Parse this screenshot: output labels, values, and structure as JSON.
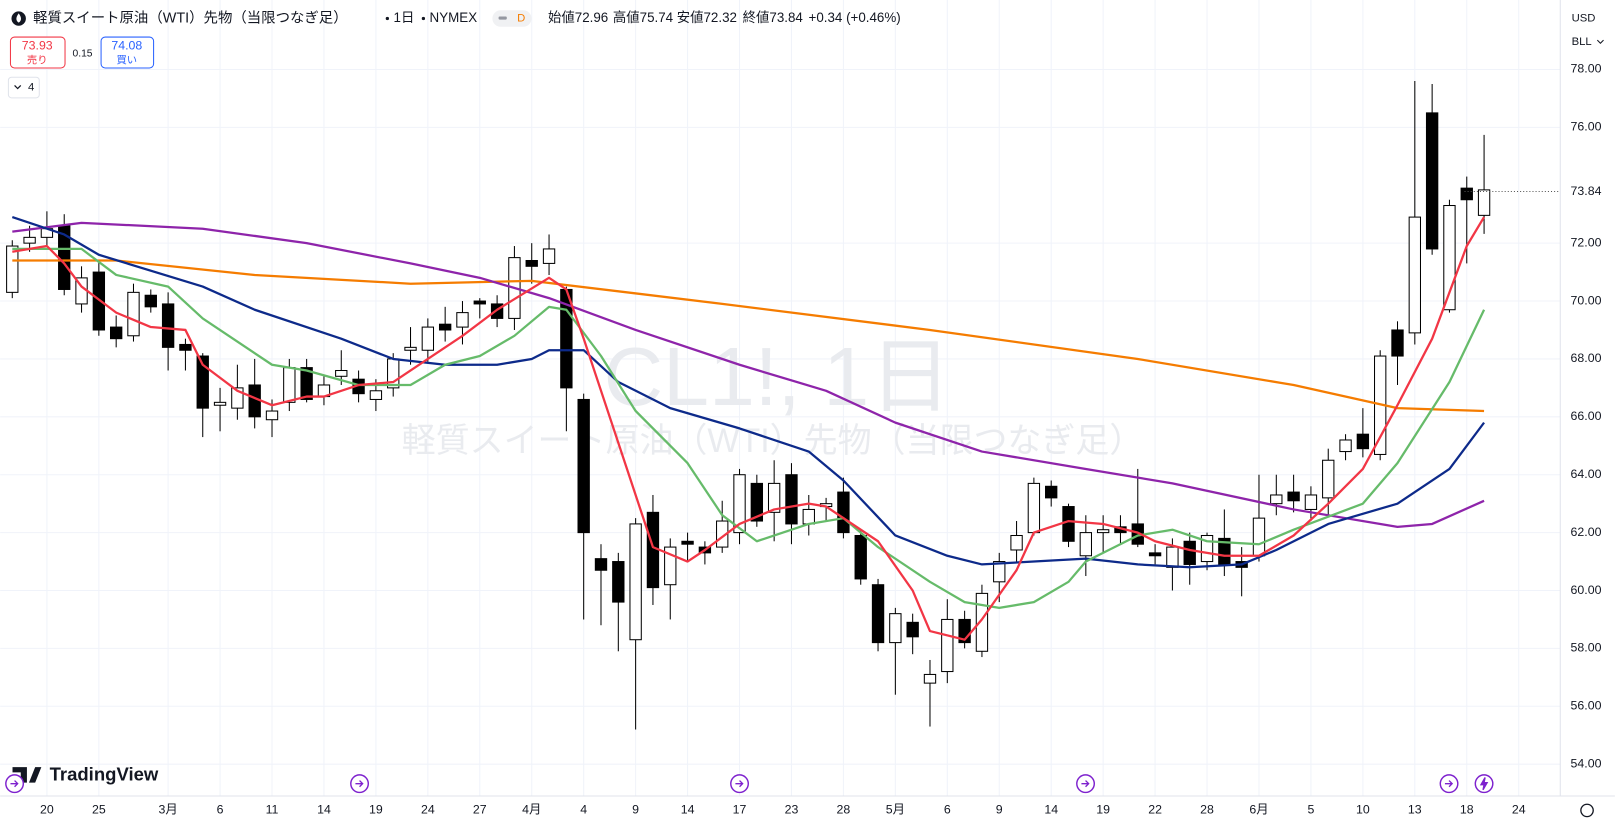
{
  "header": {
    "title": "軽質スイート原油（WTI）先物（当限つなぎ足）",
    "interval": "1日",
    "exchange": "NYMEX",
    "badge": "D",
    "open_label": "始値",
    "high_label": "高値",
    "low_label": "安値",
    "close_label": "終値",
    "change": "+0.34 (+0.46%)",
    "sell_price": "73.93",
    "sell_label": "売り",
    "spread": "0.15",
    "buy_price": "74.08",
    "buy_label": "買い",
    "indicators_count": "4",
    "currency": "USD",
    "unit": "BLL",
    "watermark": "CL1!, 1日",
    "brand": "TradingView"
  },
  "chart_data": {
    "type": "candlestick",
    "up_color": "#ffffff",
    "down_color": "#000000",
    "grid": true,
    "open": [
      70.3,
      72.0,
      72.2,
      72.6,
      69.9,
      71.0,
      69.1,
      68.8,
      70.2,
      69.9,
      68.5,
      68.1,
      66.4,
      66.3,
      67.1,
      65.9,
      66.5,
      67.7,
      66.7,
      67.4,
      67.3,
      66.6,
      67.0,
      68.3,
      68.3,
      69.2,
      69.1,
      70.0,
      69.9,
      69.4,
      71.4,
      71.3,
      70.4,
      66.6,
      61.1,
      61.0,
      58.3,
      62.7,
      60.2,
      61.7,
      61.5,
      61.5,
      62.0,
      63.7,
      62.7,
      64.0,
      62.3,
      62.9,
      63.4,
      61.9,
      60.2,
      58.2,
      58.9,
      56.8,
      57.2,
      59.0,
      57.9,
      60.3,
      61.4,
      62.0,
      63.6,
      62.9,
      61.2,
      62.0,
      62.2,
      62.3,
      61.3,
      60.8,
      61.7,
      61.0,
      61.8,
      61.0,
      61.2,
      63.0,
      63.4,
      62.8,
      63.2,
      64.8,
      65.4,
      64.7,
      69.0,
      68.9,
      76.5,
      69.7,
      73.9,
      72.96
    ],
    "high": [
      72.1,
      72.6,
      73.1,
      73.0,
      71.2,
      71.4,
      69.5,
      70.6,
      70.4,
      70.3,
      68.7,
      68.2,
      67.0,
      67.8,
      68.0,
      66.6,
      68.0,
      68.0,
      67.4,
      68.3,
      67.6,
      67.3,
      68.2,
      69.1,
      69.4,
      69.8,
      70.0,
      70.1,
      70.2,
      71.9,
      72.0,
      72.3,
      70.5,
      66.8,
      61.6,
      61.3,
      62.5,
      63.3,
      61.8,
      62.0,
      61.7,
      63.1,
      64.2,
      64.0,
      64.5,
      64.4,
      63.3,
      63.2,
      63.9,
      62.1,
      60.4,
      59.4,
      59.2,
      57.6,
      59.7,
      59.3,
      60.2,
      61.3,
      62.4,
      63.9,
      63.8,
      63.0,
      62.6,
      62.6,
      62.6,
      64.2,
      61.6,
      61.8,
      62.0,
      62.0,
      62.8,
      61.5,
      64.0,
      64.0,
      64.0,
      63.6,
      64.9,
      65.4,
      66.3,
      68.3,
      69.3,
      77.6,
      77.5,
      73.5,
      74.3,
      75.74
    ],
    "low": [
      70.1,
      71.7,
      71.9,
      70.2,
      69.6,
      68.8,
      68.4,
      68.6,
      69.6,
      67.6,
      67.6,
      65.3,
      65.5,
      65.9,
      65.6,
      65.3,
      66.2,
      66.5,
      66.4,
      67.1,
      66.5,
      66.2,
      66.7,
      67.8,
      67.9,
      68.6,
      68.5,
      69.4,
      69.1,
      69.0,
      70.6,
      70.9,
      65.5,
      59.0,
      58.8,
      57.9,
      55.2,
      59.5,
      59.0,
      61.0,
      60.9,
      61.3,
      61.6,
      62.2,
      61.7,
      61.6,
      61.9,
      62.4,
      61.8,
      60.2,
      57.9,
      56.4,
      57.8,
      55.3,
      56.8,
      58.0,
      57.7,
      59.6,
      61.0,
      61.9,
      62.9,
      61.5,
      60.5,
      61.3,
      61.6,
      61.5,
      60.9,
      60.0,
      60.2,
      60.7,
      60.5,
      59.8,
      61.0,
      62.6,
      62.7,
      62.4,
      62.6,
      64.5,
      64.6,
      64.5,
      67.1,
      68.5,
      71.6,
      69.6,
      71.3,
      72.32
    ],
    "close": [
      71.9,
      72.2,
      72.5,
      70.4,
      70.8,
      69.0,
      68.7,
      70.3,
      69.8,
      68.4,
      68.3,
      66.3,
      66.5,
      67.0,
      66.0,
      66.2,
      67.7,
      66.6,
      67.1,
      67.6,
      66.8,
      66.9,
      68.0,
      68.4,
      69.1,
      69.0,
      69.6,
      69.9,
      69.4,
      71.5,
      71.2,
      71.8,
      67.0,
      62.0,
      60.7,
      59.6,
      62.3,
      60.1,
      61.5,
      61.6,
      61.3,
      62.4,
      64.0,
      62.4,
      63.7,
      62.3,
      62.8,
      63.0,
      62.0,
      60.4,
      58.2,
      59.2,
      58.4,
      57.1,
      59.0,
      58.2,
      59.9,
      61.0,
      61.9,
      63.7,
      63.2,
      61.7,
      62.0,
      62.1,
      62.0,
      61.6,
      61.2,
      61.5,
      60.9,
      61.9,
      60.9,
      60.8,
      62.5,
      63.3,
      63.1,
      63.3,
      64.5,
      65.2,
      64.9,
      68.1,
      68.1,
      72.9,
      71.8,
      73.3,
      73.5,
      73.84
    ],
    "series": [
      {
        "color": "#f57c00",
        "x": [
          0,
          6,
          14,
          23,
          30,
          41,
          53,
          65,
          74,
          80,
          85
        ],
        "values": [
          71.4,
          71.4,
          70.9,
          70.6,
          70.7,
          69.9,
          69.0,
          68.0,
          67.1,
          66.3,
          66.2
        ]
      },
      {
        "color": "#8e24aa",
        "x": [
          0,
          4,
          11,
          17,
          23,
          27,
          31,
          36,
          42,
          47,
          51,
          56,
          62,
          67,
          74,
          80,
          82,
          85
        ],
        "values": [
          72.4,
          72.7,
          72.5,
          72.0,
          71.3,
          70.8,
          70.1,
          69.0,
          67.8,
          66.9,
          65.8,
          64.8,
          64.2,
          63.7,
          62.8,
          62.2,
          62.3,
          63.1
        ]
      },
      {
        "color": "#0d2a8a",
        "x": [
          0,
          3,
          5,
          11,
          14,
          19,
          22,
          25,
          28,
          30,
          31,
          33,
          35,
          38,
          42,
          46,
          48,
          51,
          54,
          56,
          59,
          62,
          65,
          68,
          71,
          73,
          76,
          80,
          83,
          85
        ],
        "values": [
          72.9,
          72.3,
          71.6,
          70.5,
          69.7,
          68.7,
          68.0,
          67.8,
          67.8,
          68.0,
          68.3,
          68.3,
          67.2,
          66.3,
          65.6,
          64.8,
          63.8,
          61.9,
          61.2,
          60.9,
          61.0,
          61.1,
          60.9,
          60.8,
          60.9,
          61.4,
          62.3,
          63.0,
          64.2,
          65.8
        ]
      },
      {
        "color": "#66bb6a",
        "x": [
          0,
          4,
          6,
          9,
          11,
          15,
          17,
          20,
          23,
          25,
          27,
          29,
          31,
          32,
          34,
          36,
          39,
          41,
          43,
          46,
          48,
          50,
          53,
          55,
          57,
          59,
          61,
          62,
          65,
          67,
          69,
          72,
          74,
          78,
          80,
          83,
          85
        ],
        "values": [
          71.8,
          71.8,
          70.9,
          70.5,
          69.4,
          67.8,
          67.6,
          67.1,
          67.1,
          67.8,
          68.1,
          68.8,
          69.8,
          69.7,
          68.1,
          66.2,
          64.4,
          62.6,
          61.7,
          62.3,
          62.5,
          61.5,
          60.3,
          59.6,
          59.4,
          59.6,
          60.3,
          61.0,
          61.9,
          62.1,
          61.7,
          61.6,
          62.1,
          63.0,
          64.4,
          67.2,
          69.7
        ]
      },
      {
        "color": "#f23645",
        "x": [
          0,
          2,
          3,
          4,
          6,
          8,
          10,
          11,
          13,
          15,
          17,
          18,
          20,
          22,
          24,
          26,
          28,
          31,
          32,
          33,
          35,
          37,
          39,
          40,
          42,
          44,
          46,
          47,
          50,
          52,
          53,
          55,
          56,
          58,
          59,
          61,
          63,
          65,
          66,
          68,
          70,
          72,
          74,
          76,
          78,
          80,
          82,
          84,
          85
        ],
        "values": [
          71.7,
          71.9,
          71.3,
          70.5,
          69.6,
          69.1,
          69.0,
          67.8,
          66.9,
          66.4,
          66.7,
          66.7,
          67.1,
          67.2,
          68.0,
          68.8,
          69.7,
          70.8,
          70.4,
          68.7,
          65.1,
          61.5,
          61.0,
          61.4,
          62.3,
          62.8,
          63.0,
          62.9,
          61.7,
          60.0,
          58.6,
          58.3,
          59.0,
          60.7,
          62.0,
          62.4,
          62.3,
          62.0,
          61.7,
          61.4,
          61.2,
          61.2,
          61.9,
          63.0,
          64.2,
          66.4,
          68.7,
          71.9,
          72.9
        ]
      }
    ],
    "xlim": [
      -0.7,
      89.4
    ],
    "xticks": [
      {
        "value": 2,
        "label": "20"
      },
      {
        "value": 5,
        "label": "25"
      },
      {
        "value": 9,
        "label": "3月"
      },
      {
        "value": 12,
        "label": "6"
      },
      {
        "value": 15,
        "label": "11"
      },
      {
        "value": 18,
        "label": "14"
      },
      {
        "value": 21,
        "label": "19"
      },
      {
        "value": 24,
        "label": "24"
      },
      {
        "value": 27,
        "label": "27"
      },
      {
        "value": 30,
        "label": "4月"
      },
      {
        "value": 33,
        "label": "4"
      },
      {
        "value": 36,
        "label": "9"
      },
      {
        "value": 39,
        "label": "14"
      },
      {
        "value": 42,
        "label": "17"
      },
      {
        "value": 45,
        "label": "23"
      },
      {
        "value": 48,
        "label": "28"
      },
      {
        "value": 51,
        "label": "5月"
      },
      {
        "value": 54,
        "label": "6"
      },
      {
        "value": 57,
        "label": "9"
      },
      {
        "value": 60,
        "label": "14"
      },
      {
        "value": 63,
        "label": "19"
      },
      {
        "value": 66,
        "label": "22"
      },
      {
        "value": 69,
        "label": "28"
      },
      {
        "value": 72,
        "label": "6月"
      },
      {
        "value": 75,
        "label": "5"
      },
      {
        "value": 78,
        "label": "10"
      },
      {
        "value": 81,
        "label": "13"
      },
      {
        "value": 84,
        "label": "18"
      },
      {
        "value": 87,
        "label": "24"
      }
    ],
    "ylim": [
      52.9,
      80.4
    ],
    "yticks": [
      {
        "value": 54,
        "label": "54.00"
      },
      {
        "value": 56,
        "label": "56.00"
      },
      {
        "value": 58,
        "label": "58.00"
      },
      {
        "value": 60,
        "label": "60.00"
      },
      {
        "value": 62,
        "label": "62.00"
      },
      {
        "value": 64,
        "label": "64.00"
      },
      {
        "value": 66,
        "label": "66.00"
      },
      {
        "value": 68,
        "label": "68.00"
      },
      {
        "value": 70,
        "label": "70.00"
      },
      {
        "value": 72,
        "label": "72.00"
      },
      {
        "value": 76,
        "label": "76.00"
      },
      {
        "value": 78,
        "label": "78.00"
      }
    ]
  }
}
